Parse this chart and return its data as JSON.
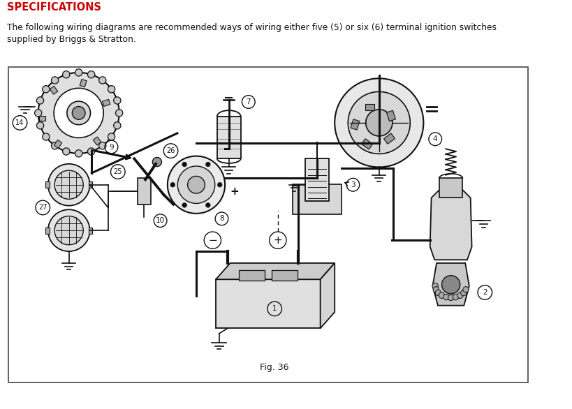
{
  "title": "SPECIFICATIONS",
  "subtitle": "The following wiring diagrams are recommended ways of wiring either five (5) or six (6) terminal ignition switches\nsupplied by Briggs & Stratton.",
  "fig_label": "Fig. 36",
  "bg_color": "#ffffff",
  "diagram_bg": "#ffffff",
  "diagram_border": "#555555",
  "text_color": "#111111",
  "title_color": "#cc0000",
  "line_color": "#111111",
  "gray1": "#dddddd",
  "gray2": "#cccccc",
  "gray3": "#aaaaaa",
  "gray4": "#888888",
  "title_fontsize": 10.5,
  "subtitle_fontsize": 8.8,
  "label_fontsize": 7.5,
  "fig_fontsize": 9,
  "lw_main": 2.2,
  "lw_thin": 1.2,
  "lw_border": 1.3
}
